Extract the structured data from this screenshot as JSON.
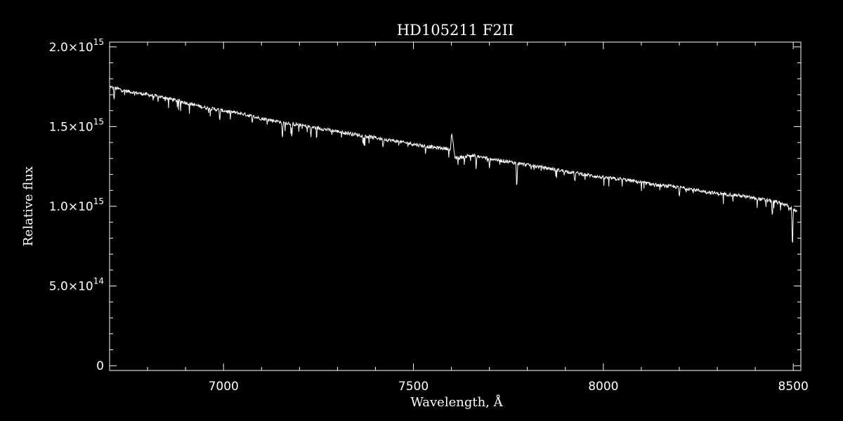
{
  "chart_data": {
    "type": "line",
    "title": "HD105211   F2II",
    "xlabel": "Wavelength, Å",
    "ylabel": "Relative flux",
    "xlim": [
      6700,
      8520
    ],
    "ylim": [
      -30000000000000.0,
      2030000000000000.0
    ],
    "grid": false,
    "colors": {
      "background": "#000000",
      "foreground": "#ffffff"
    },
    "x_ticks": [
      {
        "value": 7000,
        "label": "7000"
      },
      {
        "value": 7500,
        "label": "7500"
      },
      {
        "value": 8000,
        "label": "8000"
      },
      {
        "value": 8500,
        "label": "8500"
      }
    ],
    "x_minor_step": 100,
    "y_ticks": [
      {
        "value": 0,
        "label": "0"
      },
      {
        "value": 500000000000000.0,
        "mant": "5.0×10",
        "exp": "14"
      },
      {
        "value": 1000000000000000.0,
        "mant": "1.0×10",
        "exp": "15"
      },
      {
        "value": 1500000000000000.0,
        "mant": "1.5×10",
        "exp": "15"
      },
      {
        "value": 2000000000000000.0,
        "mant": "2.0×10",
        "exp": "15"
      }
    ],
    "y_minor_step": 100000000000000.0,
    "series": [
      {
        "name": "",
        "x": [
          6700,
          6750,
          6800,
          6850,
          6900,
          6950,
          7000,
          7050,
          7100,
          7150,
          7200,
          7250,
          7300,
          7350,
          7400,
          7450,
          7500,
          7550,
          7598,
          7600,
          7610,
          7650,
          7700,
          7750,
          7800,
          7850,
          7900,
          7950,
          8000,
          8050,
          8100,
          8150,
          8200,
          8250,
          8300,
          8350,
          8400,
          8450,
          8480,
          8500,
          8510
        ],
        "y": [
          1750000000000000.0,
          1720000000000000.0,
          1700000000000000.0,
          1680000000000000.0,
          1650000000000000.0,
          1620000000000000.0,
          1600000000000000.0,
          1580000000000000.0,
          1550000000000000.0,
          1530000000000000.0,
          1510000000000000.0,
          1490000000000000.0,
          1470000000000000.0,
          1450000000000000.0,
          1430000000000000.0,
          1410000000000000.0,
          1390000000000000.0,
          1370000000000000.0,
          1360000000000000.0,
          1460000000000000.0,
          1300000000000000.0,
          1320000000000000.0,
          1300000000000000.0,
          1280000000000000.0,
          1260000000000000.0,
          1240000000000000.0,
          1220000000000000.0,
          1200000000000000.0,
          1180000000000000.0,
          1170000000000000.0,
          1150000000000000.0,
          1130000000000000.0,
          1120000000000000.0,
          1100000000000000.0,
          1080000000000000.0,
          1070000000000000.0,
          1050000000000000.0,
          1030000000000000.0,
          1010000000000000.0,
          980000000000000.0,
          970000000000000.0
        ]
      }
    ],
    "absorption_features": [
      {
        "x": 6712,
        "depth": 80000000000000.0
      },
      {
        "x": 6990,
        "depth": 70000000000000.0
      },
      {
        "x": 7155,
        "depth": 120000000000000.0
      },
      {
        "x": 7180,
        "depth": 90000000000000.0
      },
      {
        "x": 7230,
        "depth": 70000000000000.0
      },
      {
        "x": 7420,
        "depth": 60000000000000.0
      },
      {
        "x": 7665,
        "depth": 80000000000000.0
      },
      {
        "x": 7700,
        "depth": 70000000000000.0
      },
      {
        "x": 7772,
        "depth": 180000000000000.0
      },
      {
        "x": 7925,
        "depth": 70000000000000.0
      },
      {
        "x": 8200,
        "depth": 70000000000000.0
      },
      {
        "x": 8445,
        "depth": 100000000000000.0
      },
      {
        "x": 8498,
        "depth": 280000000000000.0
      }
    ]
  }
}
